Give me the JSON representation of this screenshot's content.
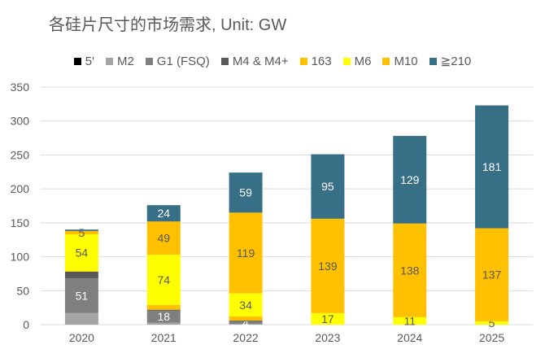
{
  "chart_data": {
    "type": "bar",
    "stacked": true,
    "title": "各硅片尺寸的市场需求, Unit: GW",
    "categories": [
      "2020",
      "2021",
      "2022",
      "2023",
      "2024",
      "2025"
    ],
    "ylim": [
      0,
      350
    ],
    "yticks": [
      0,
      50,
      100,
      150,
      200,
      250,
      300,
      350
    ],
    "grid": true,
    "legend_position": "top",
    "series": [
      {
        "name": "5'",
        "color": "#000000",
        "values": [
          0,
          0,
          0,
          0,
          0,
          0
        ],
        "labels": [
          null,
          null,
          null,
          null,
          null,
          null
        ],
        "label_color": "#ffffff"
      },
      {
        "name": "M2",
        "color": "#a5a5a5",
        "values": [
          17,
          3,
          1,
          0,
          0,
          0
        ],
        "labels": [
          null,
          null,
          null,
          null,
          null,
          null
        ],
        "label_color": "#ffffff"
      },
      {
        "name": "G1 (FSQ)",
        "color": "#7f7f7f",
        "values": [
          51,
          18,
          4,
          0,
          0,
          0
        ],
        "labels": [
          "51",
          "18",
          "4",
          null,
          null,
          null
        ],
        "label_color": "#ffffff"
      },
      {
        "name": "M4 & M4+",
        "color": "#595959",
        "values": [
          10,
          1,
          1,
          0,
          0,
          0
        ],
        "labels": [
          null,
          null,
          null,
          null,
          null,
          null
        ],
        "label_color": "#ffffff"
      },
      {
        "name": "163",
        "color": "#ffc000",
        "values": [
          1,
          7,
          6,
          0,
          0,
          0
        ],
        "labels": [
          null,
          null,
          null,
          null,
          null,
          null
        ],
        "label_color": "#595959"
      },
      {
        "name": "M6",
        "color": "#ffff00",
        "values": [
          54,
          74,
          34,
          17,
          11,
          5
        ],
        "labels": [
          "54",
          "74",
          "34",
          "17",
          "11",
          "5"
        ],
        "label_color": "#595959"
      },
      {
        "name": "M10",
        "color": "#ffc000",
        "values": [
          5,
          49,
          119,
          139,
          138,
          137
        ],
        "labels": [
          "5",
          "49",
          "119",
          "139",
          "138",
          "137"
        ],
        "label_color": "#595959"
      },
      {
        "name": "≧210",
        "color": "#376f86",
        "values": [
          2,
          24,
          59,
          95,
          129,
          181
        ],
        "labels": [
          null,
          "24",
          "59",
          "95",
          "129",
          "181"
        ],
        "label_color": "#ffffff"
      }
    ]
  }
}
